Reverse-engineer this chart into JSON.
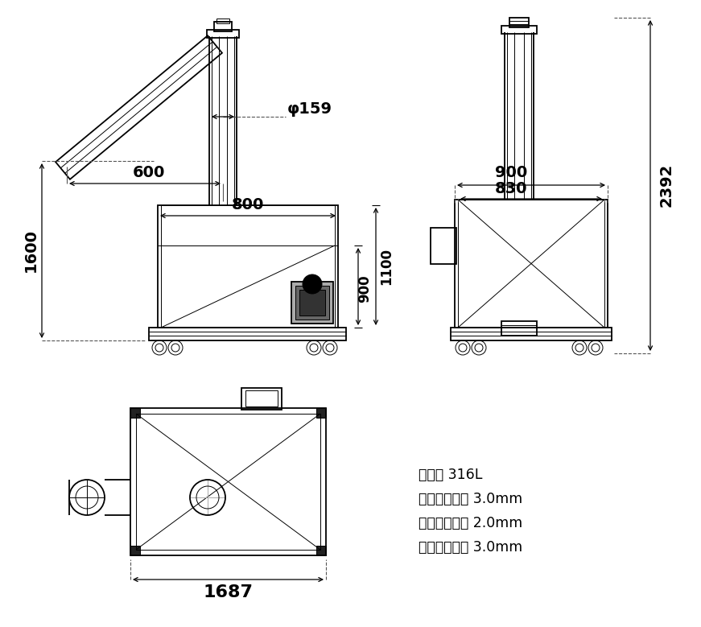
{
  "bg_color": "#ffffff",
  "line_color": "#000000",
  "annotations": {
    "phi159": "φ159",
    "d600": "600",
    "d800": "800",
    "d1600": "1600",
    "d900_top": "900",
    "d830": "830",
    "d2392": "2392",
    "d900_side": "900",
    "d1100": "1100",
    "d1687": "1687"
  },
  "specs": [
    "材质： 316L",
    "赋旋管壁厚： 3.0mm",
    "储料仓板厚： 2.0mm",
    "赋旋叶片厚： 3.0mm"
  ]
}
